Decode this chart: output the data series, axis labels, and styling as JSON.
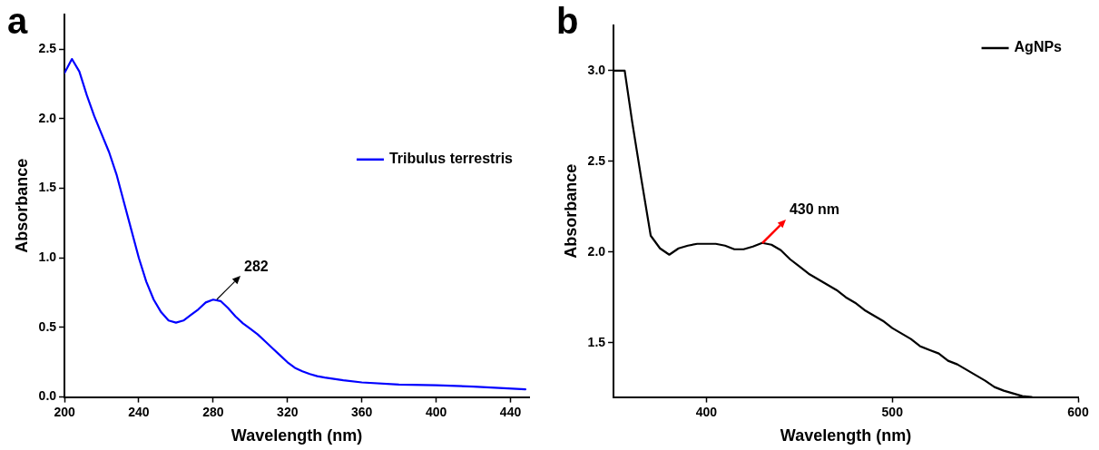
{
  "chart_data": [
    {
      "type": "line",
      "xlabel": "Wavelength (nm)",
      "ylabel": "Absorbance",
      "xlim": [
        200,
        450
      ],
      "ylim": [
        0,
        2.75
      ],
      "xticks": [
        200,
        240,
        280,
        320,
        360,
        400,
        440
      ],
      "yticks": [
        {
          "value": 0,
          "label": "0.0"
        },
        {
          "value": 0.5,
          "label": "0.5"
        },
        {
          "value": 1,
          "label": "1.0"
        },
        {
          "value": 1.5,
          "label": "1.5"
        },
        {
          "value": 2,
          "label": "2.0"
        },
        {
          "value": 2.5,
          "label": "2.5"
        }
      ],
      "legend": "right",
      "grid": false,
      "marker": "none",
      "line_style": "solid",
      "annotations": [
        "a",
        {
          "text": "282",
          "x": 282,
          "y": 0.7
        }
      ],
      "x": [
        200,
        204,
        208,
        212,
        216,
        220,
        224,
        228,
        232,
        236,
        240,
        244,
        248,
        252,
        256,
        260,
        264,
        268,
        272,
        276,
        280,
        284,
        288,
        292,
        296,
        300,
        304,
        308,
        312,
        316,
        320,
        324,
        328,
        332,
        336,
        340,
        350,
        360,
        380,
        400,
        420,
        448
      ],
      "series": [
        {
          "name": "Tribulus terrestris",
          "color": "#0000ff",
          "values": [
            2.33,
            2.43,
            2.34,
            2.17,
            2.02,
            1.89,
            1.76,
            1.6,
            1.4,
            1.2,
            1.0,
            0.83,
            0.7,
            0.61,
            0.55,
            0.535,
            0.55,
            0.59,
            0.63,
            0.68,
            0.7,
            0.69,
            0.64,
            0.58,
            0.53,
            0.49,
            0.45,
            0.4,
            0.35,
            0.3,
            0.25,
            0.21,
            0.185,
            0.165,
            0.15,
            0.14,
            0.12,
            0.105,
            0.09,
            0.085,
            0.075,
            0.055
          ]
        }
      ]
    },
    {
      "type": "line",
      "xlabel": "Wavelength (nm)",
      "ylabel": "Absorbance",
      "xlim": [
        350,
        600
      ],
      "ylim": [
        1.2,
        3.25
      ],
      "xticks": [
        400,
        500,
        600
      ],
      "yticks": [
        {
          "value": 1.5,
          "label": "1.5"
        },
        {
          "value": 2,
          "label": "2.0"
        },
        {
          "value": 2.5,
          "label": "2.5"
        },
        {
          "value": 3,
          "label": "3.0"
        }
      ],
      "legend": "top right",
      "grid": false,
      "marker": "none",
      "line_style": "solid",
      "annotations": [
        "b",
        {
          "text": "430 nm",
          "x": 430,
          "y": 2.05
        }
      ],
      "x": [
        350,
        356,
        360,
        365,
        370,
        375,
        380,
        385,
        390,
        395,
        400,
        405,
        410,
        415,
        420,
        425,
        430,
        435,
        440,
        445,
        450,
        455,
        460,
        465,
        470,
        475,
        480,
        485,
        490,
        495,
        500,
        505,
        510,
        515,
        520,
        525,
        530,
        535,
        540,
        545,
        550,
        555,
        560,
        565,
        570,
        575
      ],
      "series": [
        {
          "name": "AgNPs",
          "color": "#000000",
          "values": [
            3.0,
            3.0,
            2.72,
            2.4,
            2.09,
            2.02,
            1.985,
            2.02,
            2.035,
            2.045,
            2.045,
            2.045,
            2.035,
            2.015,
            2.015,
            2.03,
            2.05,
            2.04,
            2.01,
            1.96,
            1.92,
            1.88,
            1.85,
            1.82,
            1.79,
            1.75,
            1.72,
            1.68,
            1.65,
            1.62,
            1.58,
            1.55,
            1.52,
            1.48,
            1.46,
            1.44,
            1.4,
            1.38,
            1.35,
            1.32,
            1.29,
            1.255,
            1.235,
            1.22,
            1.205,
            1.2
          ]
        }
      ]
    }
  ]
}
